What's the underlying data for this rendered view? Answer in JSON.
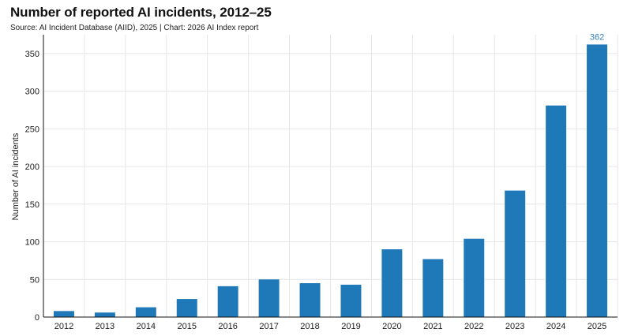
{
  "header": {
    "title": "Number of reported AI incidents, 2012–25",
    "subtitle": "Source: AI Incident Database (AIID), 2025 | Chart: 2026 AI Index report"
  },
  "chart_data": {
    "type": "bar",
    "title": "Number of reported AI incidents, 2012–25",
    "xlabel": "",
    "ylabel": "Number of AI incidents",
    "categories": [
      "2012",
      "2013",
      "2014",
      "2015",
      "2016",
      "2017",
      "2018",
      "2019",
      "2020",
      "2021",
      "2022",
      "2023",
      "2024",
      "2025"
    ],
    "values": [
      8,
      6,
      13,
      24,
      41,
      50,
      45,
      43,
      90,
      77,
      104,
      168,
      281,
      362
    ],
    "ylim": [
      0,
      375
    ],
    "yticks": [
      0,
      50,
      100,
      150,
      200,
      250,
      300,
      350
    ],
    "grid": true,
    "data_labels": [
      {
        "category": "2025",
        "text": "362"
      }
    ],
    "colors": {
      "bar": "#1f78b8",
      "label": "#2f7fc0",
      "grid": "#e6e6e6",
      "axis": "#111111"
    }
  }
}
